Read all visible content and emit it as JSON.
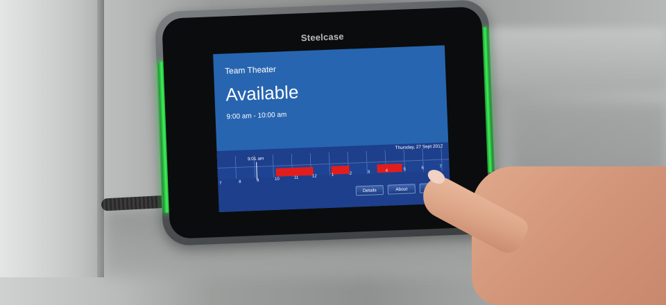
{
  "device": {
    "brand": "Steelcase",
    "led_color": "#3ef05a"
  },
  "screen": {
    "room_name": "Team Theater",
    "status": "Available",
    "time_range": "9:00 am - 10:00 am",
    "background_color": "#2765b0"
  },
  "timeline": {
    "date": "Thursday, 27 Sept 2012",
    "current_time": "9:01 am",
    "hour_labels": [
      "7",
      "8",
      "9",
      "10",
      "11",
      "12",
      "1",
      "2",
      "3",
      "4",
      "5",
      "6",
      "7"
    ],
    "booking_color": "#e01e1e",
    "buttons": [
      "Details",
      "About",
      "Us"
    ]
  }
}
